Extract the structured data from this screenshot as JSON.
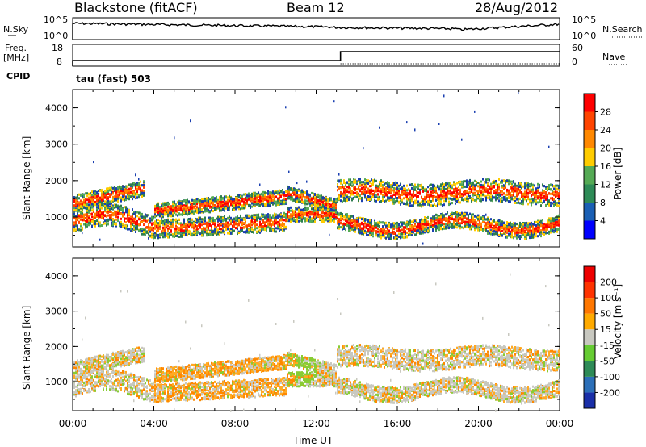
{
  "header": {
    "radar": "Blackstone (fitACF)",
    "beam": "Beam 12",
    "date": "28/Aug/2012"
  },
  "panels": {
    "nsky_label": "N.Sky",
    "nsearch_label": "N.Search",
    "freq_label": "Freq.",
    "freq_unit": "[MHz]",
    "nave_label": "Nave",
    "cpid_label": "CPID",
    "cpid_value": "tau (fast) 503",
    "noise_ticks_left": [
      "10^5",
      "10^0"
    ],
    "noise_ticks_right": [
      "10^5",
      "10^0"
    ],
    "freq_ticks": [
      "18",
      "8"
    ],
    "nave_ticks": [
      "60",
      "0"
    ]
  },
  "chart_data": [
    {
      "type": "heatmap",
      "name": "power",
      "ylabel": "Slant Range [km]",
      "yticks": [
        "4000",
        "3000",
        "2000",
        "1000"
      ],
      "ylim": [
        180,
        4500
      ],
      "colorbar": {
        "label": "Power [dB]",
        "ticks": [
          "28",
          "24",
          "20",
          "16",
          "12",
          "8",
          "4"
        ],
        "colors": [
          "#0000ff",
          "#1a5fb4",
          "#2e8b57",
          "#55aa55",
          "#ffcc00",
          "#ff8800",
          "#ff4400",
          "#ff0000"
        ]
      }
    },
    {
      "type": "heatmap",
      "name": "velocity",
      "ylabel": "Slant Range [km]",
      "yticks": [
        "4000",
        "3000",
        "2000",
        "1000"
      ],
      "ylim": [
        180,
        4500
      ],
      "colorbar": {
        "label": "Velocity [m s⁻¹]",
        "ticks": [
          "200",
          "100",
          "50",
          "15",
          "-15",
          "-50",
          "-100",
          "-200"
        ],
        "colors": [
          "#1a2fa8",
          "#2c6fb8",
          "#2e8b57",
          "#66cc33",
          "#c8c8c0",
          "#ffaa00",
          "#ff7700",
          "#ff3300",
          "#ee0000"
        ]
      }
    }
  ],
  "xaxis": {
    "ticks": [
      "00:00",
      "04:00",
      "08:00",
      "12:00",
      "16:00",
      "20:00",
      "00:00"
    ],
    "xlabel": "Time UT",
    "xlim_hours": [
      0,
      24
    ]
  }
}
